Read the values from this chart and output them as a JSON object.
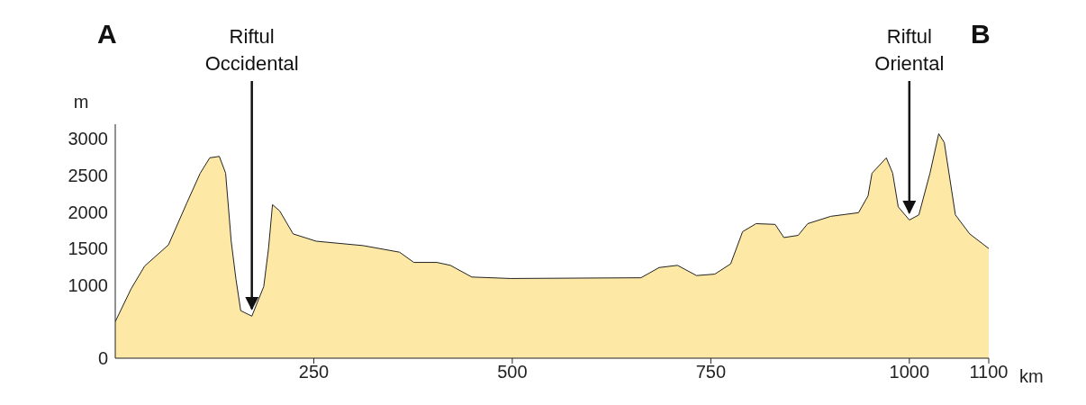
{
  "chart_data": {
    "type": "area",
    "xlabel": "km",
    "ylabel": "m",
    "x": [
      0,
      20,
      37,
      67,
      90,
      107,
      119,
      131,
      139,
      146,
      152,
      158,
      172,
      187,
      193,
      198,
      207,
      224,
      253,
      312,
      358,
      376,
      405,
      422,
      449,
      498,
      662,
      685,
      708,
      732,
      755,
      775,
      790,
      807,
      831,
      842,
      860,
      872,
      901,
      936,
      948,
      953,
      971,
      979,
      986,
      1000,
      1012,
      1026,
      1037,
      1044,
      1058,
      1076,
      1100
    ],
    "series": [
      {
        "color": "#fde8a6",
        "values": [
          500,
          950,
          1260,
          1550,
          2120,
          2530,
          2740,
          2760,
          2530,
          1600,
          1080,
          650,
          575,
          980,
          1500,
          2100,
          2015,
          1700,
          1600,
          1540,
          1450,
          1310,
          1310,
          1270,
          1110,
          1090,
          1100,
          1240,
          1270,
          1130,
          1150,
          1290,
          1730,
          1840,
          1830,
          1650,
          1680,
          1840,
          1940,
          1990,
          2220,
          2530,
          2740,
          2530,
          2070,
          1890,
          1960,
          2530,
          3070,
          2950,
          1960,
          1700,
          1500
        ]
      }
    ],
    "xlim": [
      0,
      1100
    ],
    "xticks": [
      250,
      500,
      750,
      1000,
      1100
    ],
    "ylim": [
      0,
      3200
    ],
    "yticks": [
      0,
      1000,
      1500,
      2000,
      2500,
      3000
    ],
    "grid": false,
    "legend": false,
    "annotations": [
      "A",
      "B",
      {
        "text": "Riftul Occidental",
        "x": 172,
        "y": 575
      },
      {
        "text": "Riftul Oriental",
        "x": 1000,
        "y": 1890
      }
    ]
  }
}
